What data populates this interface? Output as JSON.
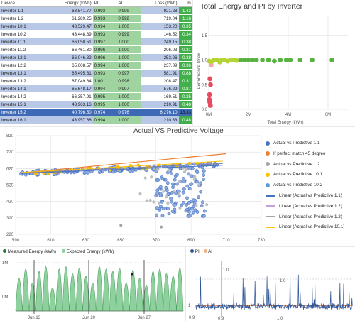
{
  "table": {
    "headers": {
      "device": "Device",
      "energy": "Energy (kWh)",
      "pi": "PI",
      "ai": "AI",
      "loss": "Loss (kWh)",
      "pct": "%"
    },
    "rows": [
      {
        "device": "Inverter 1.1",
        "energy": "63,541.77",
        "pi": "0.993",
        "ai": "0.999",
        "loss": "921.28",
        "pct": "1.43"
      },
      {
        "device": "Inverter 1.2",
        "energy": "61,289.25",
        "pi": "0.993",
        "ai": "0.998",
        "loss": "719.04",
        "pct": "1.16"
      },
      {
        "device": "Inverter 10.1",
        "energy": "43,529.47",
        "pi": "0.994",
        "ai": "1.000",
        "loss": "153.20",
        "pct": "0.35"
      },
      {
        "device": "Inverter 10.2",
        "energy": "43,448.89",
        "pi": "0.993",
        "ai": "0.999",
        "loss": "146.52",
        "pct": "0.34"
      },
      {
        "device": "Inverter 11.1",
        "energy": "66,050.51",
        "pi": "0.997",
        "ai": "1.000",
        "loss": "249.15",
        "pct": "0.38"
      },
      {
        "device": "Inverter 11.2",
        "energy": "66,461.30",
        "pi": "0.996",
        "ai": "1.000",
        "loss": "206.03",
        "pct": "0.31"
      },
      {
        "device": "Inverter 12.1",
        "energy": "66,046.82",
        "pi": "0.996",
        "ai": "1.000",
        "loss": "253.26",
        "pct": "0.38"
      },
      {
        "device": "Inverter 12.2",
        "energy": "65,608.57",
        "pi": "0.994",
        "ai": "1.000",
        "loss": "237.09",
        "pct": "0.36"
      },
      {
        "device": "Inverter 13.1",
        "energy": "65,495.81",
        "pi": "0.993",
        "ai": "0.997",
        "loss": "581.91",
        "pct": "0.88"
      },
      {
        "device": "Inverter 13.2",
        "energy": "67,049.84",
        "pi": "1.001",
        "ai": "0.998",
        "loss": "208.47",
        "pct": "0.31"
      },
      {
        "device": "Inverter 14.1",
        "energy": "65,648.17",
        "pi": "0.994",
        "ai": "0.997",
        "loss": "576.29",
        "pct": "0.87"
      },
      {
        "device": "Inverter 14.2",
        "energy": "66,357.91",
        "pi": "0.995",
        "ai": "1.000",
        "loss": "169.51",
        "pct": "0.25"
      },
      {
        "device": "Inverter 15.1",
        "energy": "43,963.16",
        "pi": "0.995",
        "ai": "1.000",
        "loss": "210.91",
        "pct": "0.48"
      },
      {
        "device": "Inverter 15.2",
        "energy": "40,796.50",
        "pi": "0.974",
        "ai": "0.976",
        "loss": "6,276.10",
        "pct": "13.33",
        "selected": true
      },
      {
        "device": "Inverter 16.1",
        "energy": "43,957.66",
        "pi": "0.994",
        "ai": "1.000",
        "loss": "210.33",
        "pct": "0.48"
      }
    ]
  },
  "colors": {
    "accent": "#3e6ab5",
    "good": "#42b04a",
    "warn": "#f7a33a",
    "blue_points": "#4472c4",
    "orange": "#ed7d31",
    "gray": "#a5a5a5",
    "yellow": "#ffc000"
  },
  "chart_data": [
    {
      "type": "scatter",
      "title": "Total Energy and PI by Inverter",
      "xlabel": "Total Energy (kWh)",
      "ylabel": "Performance Index",
      "xticks": [
        "0M",
        "2M",
        "4M",
        "6M"
      ],
      "yticks": [
        "0.0",
        "0.5",
        "1.0",
        "1.5"
      ],
      "xlim": [
        0,
        7000000
      ],
      "ylim": [
        0,
        1.9
      ],
      "points": [
        {
          "x": 20000,
          "y": 0.98
        },
        {
          "x": 60000,
          "y": 0.62
        },
        {
          "x": 90000,
          "y": 0.5
        },
        {
          "x": 40000,
          "y": 0.3
        },
        {
          "x": 30000,
          "y": 0.2
        },
        {
          "x": 50000,
          "y": 0.15
        },
        {
          "x": 80000,
          "y": 0.08
        },
        {
          "x": 120000,
          "y": 0.9
        },
        {
          "x": 150000,
          "y": 0.97
        },
        {
          "x": 250000,
          "y": 1.0
        },
        {
          "x": 400000,
          "y": 1.0
        },
        {
          "x": 550000,
          "y": 0.96
        },
        {
          "x": 650000,
          "y": 1.0
        },
        {
          "x": 800000,
          "y": 1.0
        },
        {
          "x": 950000,
          "y": 0.98
        },
        {
          "x": 1100000,
          "y": 1.0
        },
        {
          "x": 1250000,
          "y": 1.0
        },
        {
          "x": 1400000,
          "y": 0.99
        },
        {
          "x": 1600000,
          "y": 1.0
        },
        {
          "x": 1800000,
          "y": 1.0
        },
        {
          "x": 2000000,
          "y": 1.0
        },
        {
          "x": 2200000,
          "y": 1.0
        },
        {
          "x": 2400000,
          "y": 1.0
        },
        {
          "x": 2700000,
          "y": 1.0
        },
        {
          "x": 3000000,
          "y": 1.0
        },
        {
          "x": 3300000,
          "y": 0.98
        },
        {
          "x": 3600000,
          "y": 1.0
        },
        {
          "x": 3900000,
          "y": 1.0
        },
        {
          "x": 4100000,
          "y": 1.0
        },
        {
          "x": 4600000,
          "y": 1.0
        },
        {
          "x": 5200000,
          "y": 1.0
        },
        {
          "x": 6200000,
          "y": 1.0
        }
      ]
    },
    {
      "type": "scatter",
      "title": "Actual VS Predictive Voltage",
      "xticks": [
        "590",
        "610",
        "630",
        "650",
        "670",
        "690",
        "710",
        "730"
      ],
      "yticks": [
        "220",
        "320",
        "420",
        "520",
        "620",
        "720",
        "820"
      ],
      "xlim": [
        590,
        730
      ],
      "ylim": [
        220,
        820
      ],
      "legend": [
        "Actual vs Predictive 1.1",
        "If perfect match 45 degree",
        "Actual vs Predictive 1.2",
        "Actual vs Predictive 10.1",
        "Actual vs Predictive 10.2",
        "Linear (Actual vs Predictive 1.1)",
        "Linear (Actual vs Predictive 1.2)",
        "Linear (Actual vs Predictive 1.2)",
        "Linear (Actual vs Predictive 10.1)"
      ],
      "perfect_line": [
        [
          593,
          593
        ],
        [
          710,
          710
        ]
      ],
      "trend_lines": [
        {
          "color": "#4472c4",
          "from": [
            593,
            590
          ],
          "to": [
            708,
            640
          ]
        },
        {
          "color": "#7f7f9f",
          "from": [
            593,
            594
          ],
          "to": [
            708,
            650
          ]
        },
        {
          "color": "#ffc000",
          "from": [
            593,
            596
          ],
          "to": [
            708,
            665
          ]
        }
      ]
    },
    {
      "type": "area",
      "legend": [
        "Measured Energy (kWh)",
        "Expected Energy (kWh)"
      ],
      "xticks": [
        "Jun 13",
        "Jun 20",
        "Jun 27"
      ],
      "yticks": [
        "0M",
        "1M"
      ],
      "values": [
        0.7,
        0.9,
        0.6,
        0.85,
        0.95,
        0.5,
        0.9,
        0.95,
        0.8,
        0.92,
        0.75,
        0.6,
        0.95,
        0.9,
        0.85,
        0.92,
        0.6,
        0.88,
        0.7,
        0.55,
        0.85,
        0.9,
        0.8,
        0.75,
        0.92
      ]
    },
    {
      "type": "line",
      "legend": [
        "PI",
        "AI"
      ],
      "yticks": [
        "1",
        "1.0",
        "0.9"
      ],
      "labels": [
        "0.9",
        "1.0",
        "1.0"
      ]
    }
  ]
}
